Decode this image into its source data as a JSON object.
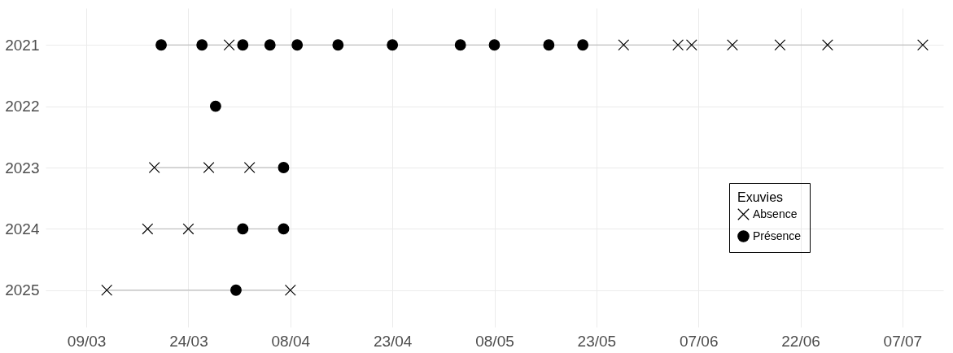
{
  "chart_data": {
    "type": "scatter",
    "legend_title": "Exuvies",
    "xlim": [
      "--03-03",
      "--07-13"
    ],
    "xticks": [
      {
        "value": "--03-09",
        "label": "09/03"
      },
      {
        "value": "--03-24",
        "label": "24/03"
      },
      {
        "value": "--04-08",
        "label": "08/04"
      },
      {
        "value": "--04-23",
        "label": "23/04"
      },
      {
        "value": "--05-08",
        "label": "08/05"
      },
      {
        "value": "--05-23",
        "label": "23/05"
      },
      {
        "value": "--06-07",
        "label": "07/06"
      },
      {
        "value": "--06-22",
        "label": "22/06"
      },
      {
        "value": "--07-07",
        "label": "07/07"
      }
    ],
    "ylim": [
      2025.6,
      2020.4
    ],
    "yticks": [
      2021,
      2022,
      2023,
      2024,
      2025
    ],
    "grid": true,
    "legend": "right",
    "series": [
      {
        "type": "line",
        "color": "#b3b3b3",
        "marker": "none",
        "x": [
          "--03-20",
          "--07-10"
        ],
        "values": [
          2021,
          2021
        ]
      },
      {
        "type": "line",
        "color": "#b3b3b3",
        "marker": "none",
        "x": [
          "--03-19",
          "--04-07"
        ],
        "values": [
          2023,
          2023
        ]
      },
      {
        "type": "line",
        "color": "#b3b3b3",
        "marker": "none",
        "x": [
          "--03-18",
          "--04-07"
        ],
        "values": [
          2024,
          2024
        ]
      },
      {
        "type": "line",
        "color": "#b3b3b3",
        "marker": "none",
        "x": [
          "--03-12",
          "--04-08"
        ],
        "values": [
          2025,
          2025
        ]
      },
      {
        "type": "scatter",
        "name": "Absence",
        "color": "#000000",
        "marker": "cross",
        "x": [
          "--03-30",
          "--05-27",
          "--06-04",
          "--06-06",
          "--06-12",
          "--06-19",
          "--06-26",
          "--07-10",
          "--03-19",
          "--03-27",
          "--04-02",
          "--03-18",
          "--03-24",
          "--03-12",
          "--04-08"
        ],
        "values": [
          2021,
          2021,
          2021,
          2021,
          2021,
          2021,
          2021,
          2021,
          2023,
          2023,
          2023,
          2024,
          2024,
          2025,
          2025
        ]
      },
      {
        "type": "scatter",
        "name": "Présence",
        "color": "#000000",
        "marker": "circle",
        "x": [
          "--03-20",
          "--03-26",
          "--04-01",
          "--04-05",
          "--04-09",
          "--04-15",
          "--04-23",
          "--05-03",
          "--05-08",
          "--05-16",
          "--05-21",
          "--03-28",
          "--04-07",
          "--04-01",
          "--04-07",
          "--03-31"
        ],
        "values": [
          2021,
          2021,
          2021,
          2021,
          2021,
          2021,
          2021,
          2021,
          2021,
          2021,
          2021,
          2022,
          2023,
          2024,
          2024,
          2025
        ]
      }
    ]
  }
}
